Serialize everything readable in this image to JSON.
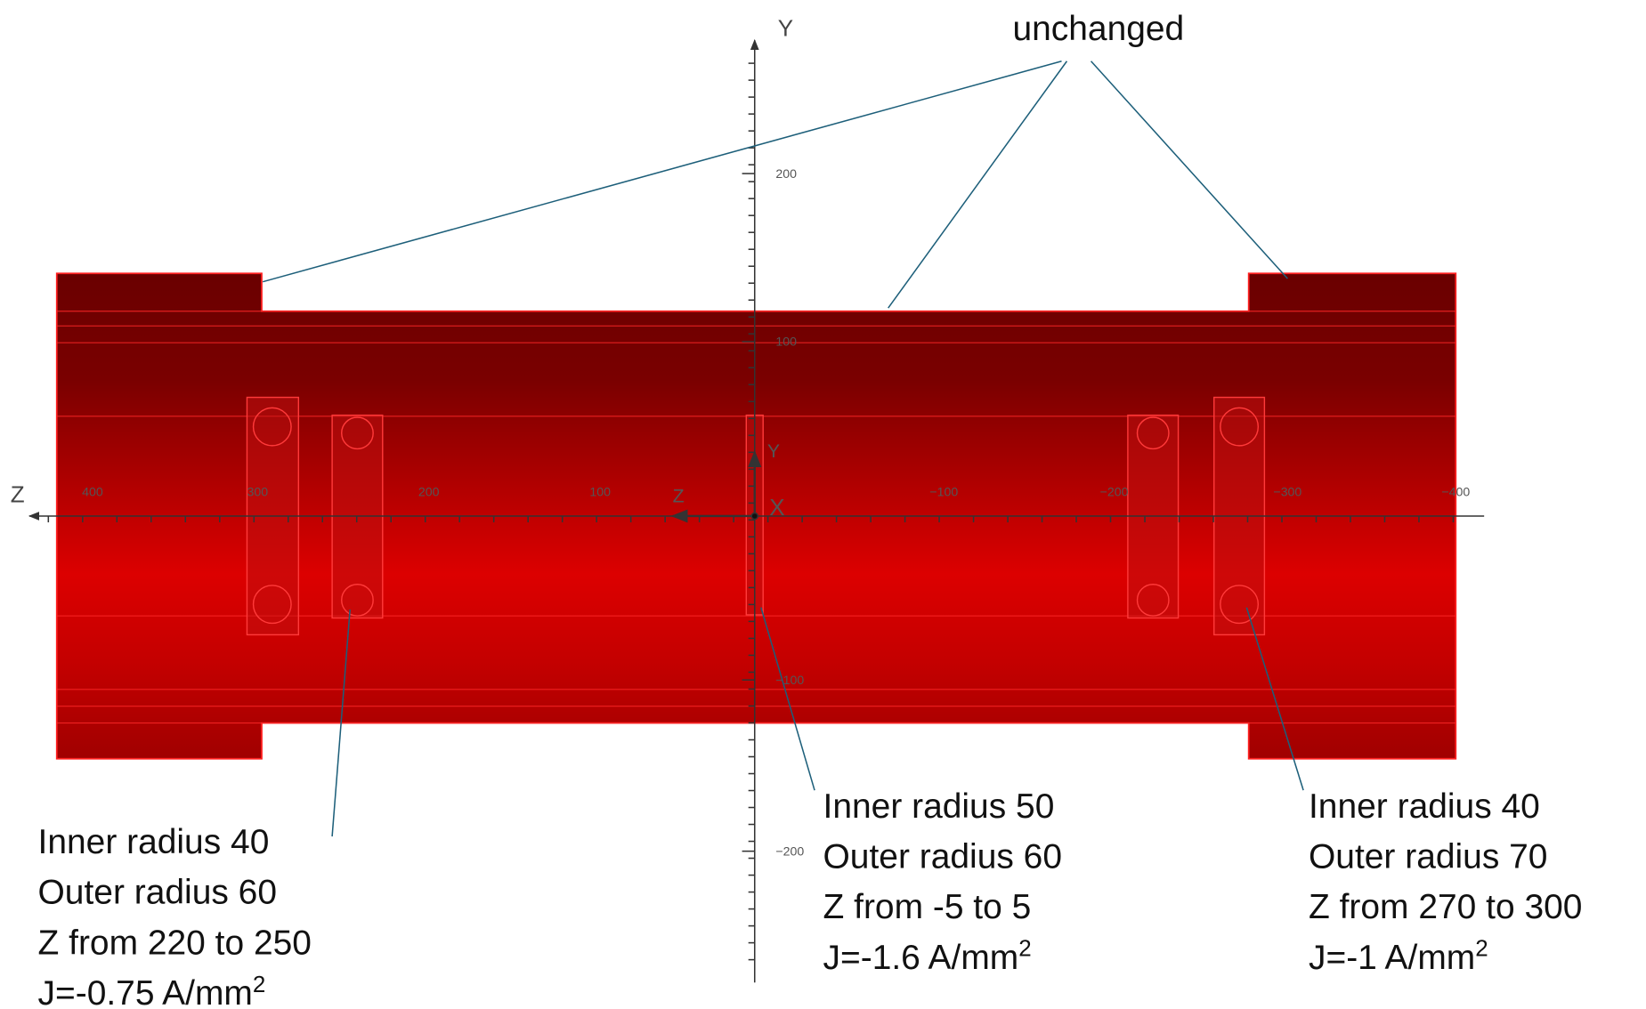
{
  "axes": {
    "y_label": "Y",
    "z_label": "Z",
    "y_ticks": [
      "200",
      "100",
      "−100",
      "−200"
    ],
    "z_ticks": [
      "400",
      "300",
      "200",
      "100",
      "−100",
      "−200",
      "−300",
      "−400"
    ],
    "origin_labels": [
      "Z",
      "Y",
      "X"
    ]
  },
  "annotations": {
    "unchanged": "unchanged",
    "coils": [
      {
        "lines": [
          "Inner radius 40",
          "Outer radius 60",
          "Z from 220 to 250"
        ],
        "current": "J=-0.75 A/mm",
        "current_sup": "2"
      },
      {
        "lines": [
          "Inner radius 50",
          "Outer radius 60",
          "Z from -5 to 5"
        ],
        "current": "J=-1.6 A/mm",
        "current_sup": "2"
      },
      {
        "lines": [
          "Inner radius 40",
          "Outer radius 70",
          "Z from 270 to 300"
        ],
        "current": "J=-1 A/mm",
        "current_sup": "2"
      }
    ]
  }
}
